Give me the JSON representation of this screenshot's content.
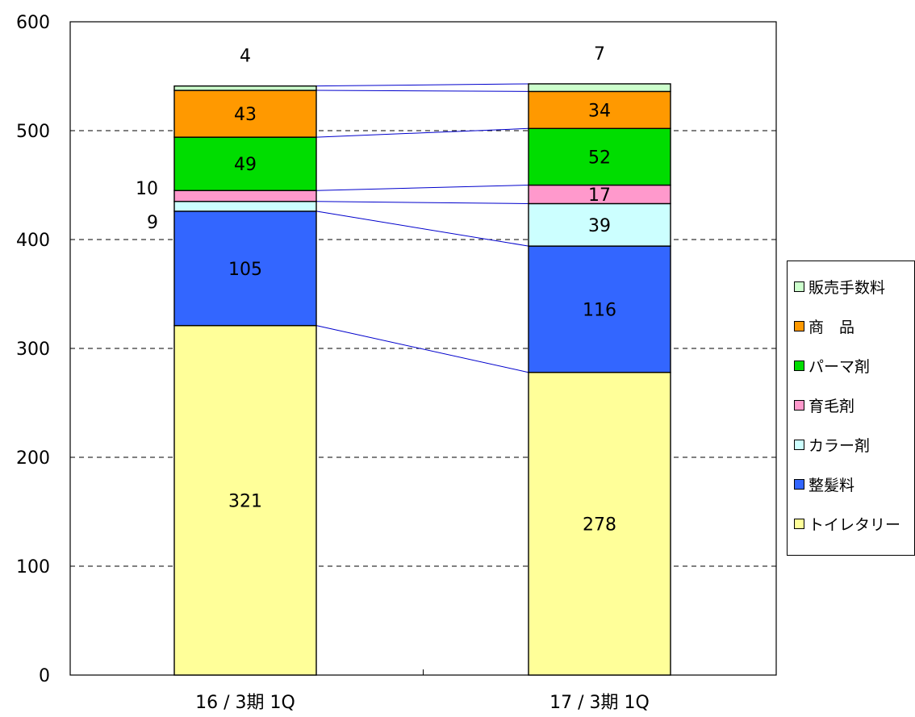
{
  "chart_data": {
    "type": "bar",
    "stacked": true,
    "categories": [
      "16 / 3期  1Q",
      "17 / 3期  1Q"
    ],
    "ylim": [
      0,
      600
    ],
    "yticks": [
      0,
      100,
      200,
      300,
      400,
      500,
      600
    ],
    "grid": "dashed horizontal",
    "legend_position": "right",
    "series": [
      {
        "name": "トイレタリー",
        "values": [
          321,
          278
        ],
        "color": "#FFFF99"
      },
      {
        "name": "整髪料",
        "values": [
          105,
          116
        ],
        "color": "#3366FF"
      },
      {
        "name": "カラー剤",
        "values": [
          9,
          39
        ],
        "color": "#CCFFFF"
      },
      {
        "name": "育毛剤",
        "values": [
          10,
          17
        ],
        "color": "#FF99CC"
      },
      {
        "name": "パーマ剤",
        "values": [
          49,
          52
        ],
        "color": "#00DD00"
      },
      {
        "name": "商　品",
        "values": [
          43,
          34
        ],
        "color": "#FF9900"
      },
      {
        "name": "販売手数料",
        "values": [
          4,
          7
        ],
        "color": "#CCFFCC"
      }
    ],
    "connector_color": "#0000CC"
  }
}
